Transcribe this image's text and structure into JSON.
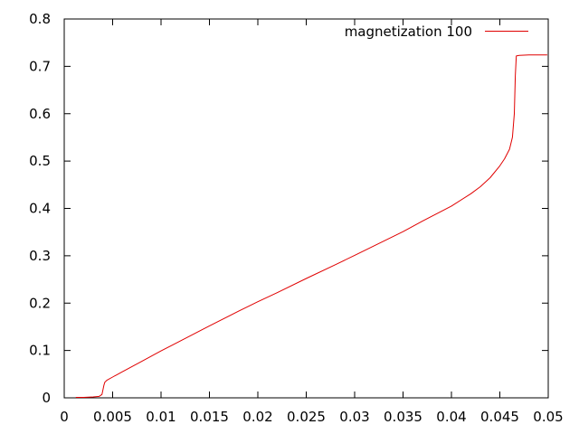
{
  "chart_data": {
    "type": "line",
    "xlim": [
      0,
      0.05
    ],
    "ylim": [
      0,
      0.8
    ],
    "x_ticks": [
      "0",
      "0.005",
      "0.01",
      "0.015",
      "0.02",
      "0.025",
      "0.03",
      "0.035",
      "0.04",
      "0.045",
      "0.05"
    ],
    "y_ticks": [
      "0",
      "0.1",
      "0.2",
      "0.3",
      "0.4",
      "0.5",
      "0.6",
      "0.7",
      "0.8"
    ],
    "grid": false,
    "legend_position": "top-right",
    "series": [
      {
        "name": "magnetization 100",
        "color": "#e00000",
        "x": [
          0.0012,
          0.002,
          0.003,
          0.0036,
          0.0039,
          0.0041,
          0.0042,
          0.0044,
          0.005,
          0.006,
          0.008,
          0.01,
          0.012,
          0.015,
          0.018,
          0.02,
          0.022,
          0.025,
          0.028,
          0.03,
          0.032,
          0.035,
          0.037,
          0.04,
          0.042,
          0.043,
          0.044,
          0.045,
          0.0455,
          0.046,
          0.0463,
          0.0465,
          0.0466,
          0.0467,
          0.047,
          0.048,
          0.0499
        ],
        "y": [
          0.001,
          0.001,
          0.002,
          0.003,
          0.007,
          0.027,
          0.033,
          0.037,
          0.044,
          0.055,
          0.077,
          0.099,
          0.12,
          0.152,
          0.183,
          0.203,
          0.222,
          0.252,
          0.281,
          0.301,
          0.321,
          0.351,
          0.373,
          0.405,
          0.431,
          0.446,
          0.465,
          0.49,
          0.505,
          0.525,
          0.55,
          0.6,
          0.68,
          0.722,
          0.723,
          0.724,
          0.724
        ]
      }
    ]
  }
}
